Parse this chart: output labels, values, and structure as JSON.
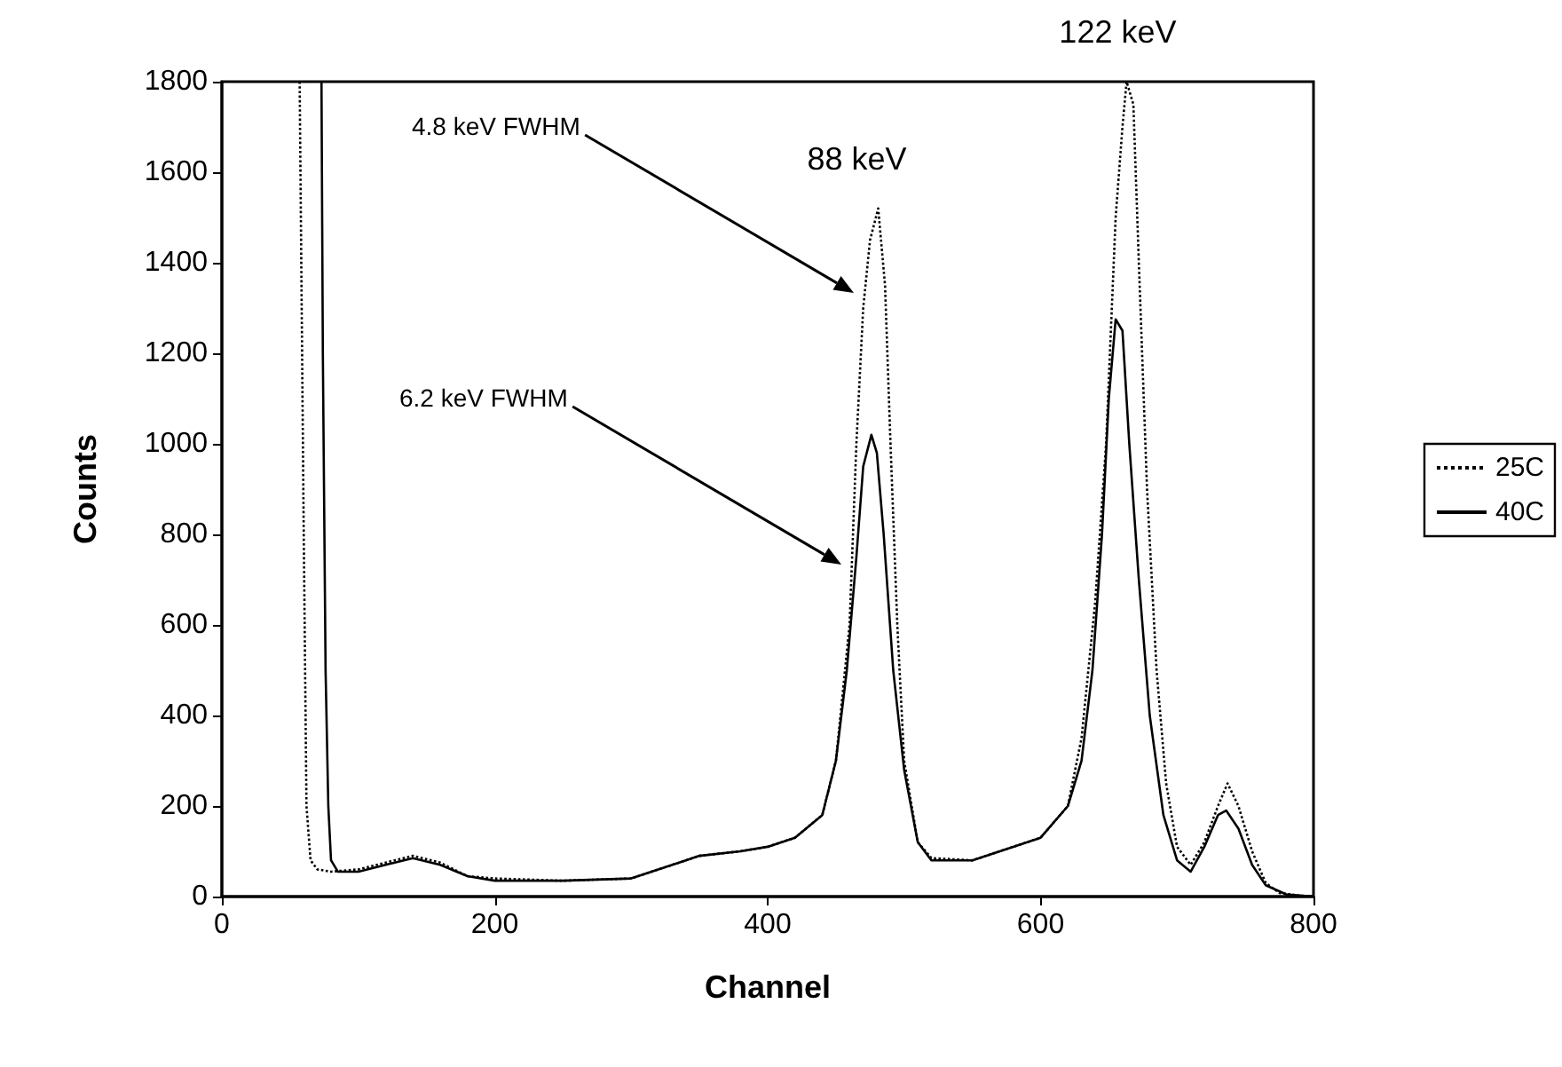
{
  "chart_data": {
    "type": "line",
    "xlabel": "Channel",
    "ylabel": "Counts",
    "xlim": [
      0,
      800
    ],
    "xticks": [
      0,
      200,
      400,
      600,
      800
    ],
    "ylim": [
      0,
      1800
    ],
    "yticks": [
      0,
      200,
      400,
      600,
      800,
      1000,
      1200,
      1400,
      1600,
      1800
    ],
    "grid": false,
    "legend": "right",
    "marker": "none",
    "series": [
      {
        "name": "25C",
        "color": "#000000",
        "line_style": "dotted",
        "x": [
          57,
          60,
          62,
          65,
          70,
          80,
          100,
          120,
          140,
          160,
          180,
          200,
          250,
          300,
          320,
          350,
          380,
          400,
          420,
          440,
          450,
          460,
          465,
          470,
          475,
          481,
          486,
          490,
          495,
          500,
          510,
          520,
          550,
          580,
          600,
          620,
          630,
          640,
          648,
          655,
          660,
          663,
          668,
          672,
          678,
          685,
          692,
          700,
          710,
          720,
          730,
          737,
          745,
          755,
          765,
          775,
          790,
          800
        ],
        "values": [
          1800,
          800,
          200,
          80,
          60,
          55,
          60,
          75,
          90,
          75,
          45,
          40,
          35,
          40,
          60,
          90,
          100,
          110,
          130,
          180,
          300,
          600,
          1000,
          1300,
          1450,
          1520,
          1350,
          1000,
          600,
          300,
          120,
          85,
          80,
          110,
          130,
          200,
          350,
          650,
          1000,
          1500,
          1700,
          1800,
          1750,
          1400,
          900,
          500,
          250,
          110,
          70,
          120,
          200,
          250,
          200,
          100,
          30,
          8,
          2,
          0
        ]
      },
      {
        "name": "40C",
        "color": "#000000",
        "line_style": "solid",
        "x": [
          73,
          74,
          76,
          78,
          80,
          85,
          100,
          120,
          140,
          160,
          180,
          200,
          250,
          300,
          350,
          380,
          400,
          420,
          440,
          450,
          458,
          465,
          470,
          476,
          480,
          485,
          492,
          500,
          510,
          520,
          550,
          580,
          600,
          620,
          630,
          638,
          645,
          650,
          655,
          660,
          665,
          672,
          680,
          690,
          700,
          710,
          720,
          730,
          736,
          745,
          755,
          765,
          780,
          800
        ],
        "values": [
          1800,
          1200,
          500,
          200,
          80,
          55,
          55,
          70,
          85,
          70,
          45,
          35,
          35,
          40,
          90,
          100,
          110,
          130,
          180,
          300,
          500,
          750,
          950,
          1020,
          980,
          800,
          500,
          280,
          120,
          80,
          80,
          110,
          130,
          200,
          300,
          500,
          800,
          1100,
          1275,
          1250,
          1000,
          700,
          400,
          180,
          80,
          55,
          110,
          180,
          190,
          150,
          70,
          25,
          5,
          0
        ]
      }
    ],
    "annotations": [
      "4.8 keV FWHM",
      "6.2 keV FWHM",
      {
        "text": "88 keV",
        "x": 481,
        "y": 1520
      },
      {
        "text": "122 keV",
        "x": 663,
        "y": 1800
      }
    ]
  }
}
